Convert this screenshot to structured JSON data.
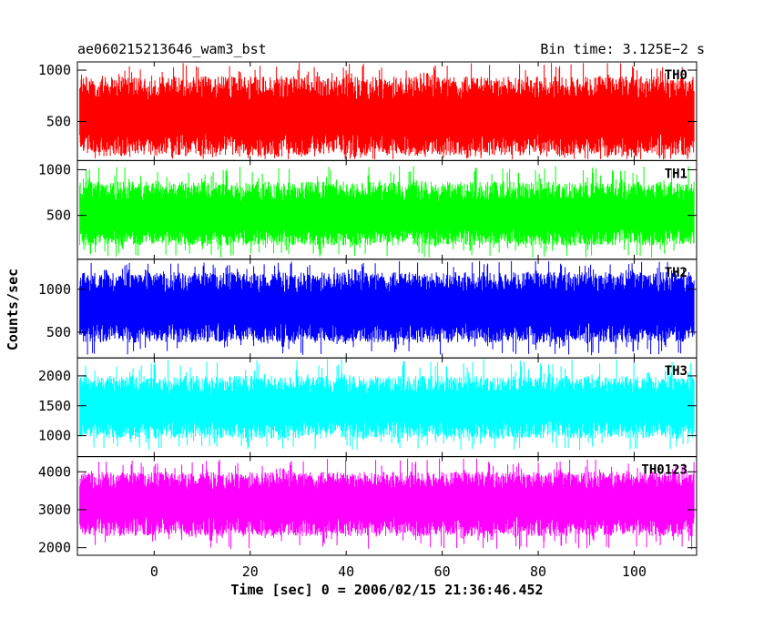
{
  "chart_data": {
    "type": "line",
    "title": "ae060215213646_wam3_bst",
    "bin_time_label": "Bin time: 3.125E−2 s",
    "xlabel": "Time [sec] 0 = 2006/02/15 21:36:46.452",
    "ylabel": "Counts/sec",
    "xlim": [
      -16,
      113
    ],
    "data_xrange": [
      -15.5,
      112.5
    ],
    "x_ticks": [
      0,
      20,
      40,
      60,
      80,
      100
    ],
    "x_tick_labels": [
      "0",
      "20",
      "40",
      "60",
      "80",
      "100"
    ],
    "grid": false,
    "legend": "none",
    "panels": [
      {
        "name": "TH0",
        "color": "#ff0000",
        "ylim": [
          120,
          1080
        ],
        "y_ticks": [
          500,
          1000
        ],
        "y_tick_labels": [
          "500",
          "1000"
        ],
        "mean": 520,
        "spread_low": 170,
        "spread_high": 940,
        "extreme_low": 130,
        "extreme_high": 1070
      },
      {
        "name": "TH1",
        "color": "#00ff00",
        "ylim": [
          20,
          1100
        ],
        "y_ticks": [
          500,
          1000
        ],
        "y_tick_labels": [
          "500",
          "1000"
        ],
        "mean": 470,
        "spread_low": 170,
        "spread_high": 870,
        "extreme_low": 40,
        "extreme_high": 1040
      },
      {
        "name": "TH2",
        "color": "#0000ff",
        "ylim": [
          200,
          1350
        ],
        "y_ticks": [
          500,
          1000
        ],
        "y_tick_labels": [
          "500",
          "1000"
        ],
        "mean": 760,
        "spread_low": 380,
        "spread_high": 1200,
        "extreme_low": 230,
        "extreme_high": 1330
      },
      {
        "name": "TH3",
        "color": "#00ffff",
        "ylim": [
          650,
          2300
        ],
        "y_ticks": [
          1000,
          1500,
          2000
        ],
        "y_tick_labels": [
          "1000",
          "1500",
          "2000"
        ],
        "mean": 1450,
        "spread_low": 950,
        "spread_high": 2000,
        "extreme_low": 760,
        "extreme_high": 2280
      },
      {
        "name": "TH0123",
        "color": "#ff00ff",
        "ylim": [
          1800,
          4400
        ],
        "y_ticks": [
          2000,
          3000,
          4000
        ],
        "y_tick_labels": [
          "2000",
          "3000",
          "4000"
        ],
        "mean": 3150,
        "spread_low": 2300,
        "spread_high": 4000,
        "extreme_low": 1950,
        "extreme_high": 4350
      }
    ]
  }
}
